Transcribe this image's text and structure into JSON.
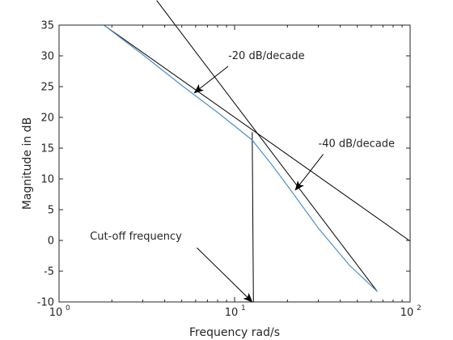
{
  "chart_data": {
    "type": "line",
    "xlabel": "Frequency rad/s",
    "ylabel": "Magnitude in dB",
    "xscale": "log",
    "xlim": [
      1,
      100
    ],
    "ylim": [
      -10,
      35
    ],
    "grid": false,
    "x_ticks": [
      {
        "value": 1,
        "base": "10",
        "exp": "0"
      },
      {
        "value": 10,
        "base": "10",
        "exp": "1"
      },
      {
        "value": 100,
        "base": "10",
        "exp": "2"
      }
    ],
    "y_ticks": [
      {
        "value": -10,
        "label": "-10"
      },
      {
        "value": -5,
        "label": "-5"
      },
      {
        "value": 0,
        "label": "0"
      },
      {
        "value": 5,
        "label": "5"
      },
      {
        "value": 10,
        "label": "10"
      },
      {
        "value": 15,
        "label": "15"
      },
      {
        "value": 20,
        "label": "20"
      },
      {
        "value": 25,
        "label": "25"
      },
      {
        "value": 30,
        "label": "30"
      },
      {
        "value": 35,
        "label": "35"
      }
    ],
    "series": [
      {
        "color": "#4a90c8",
        "points": [
          [
            1.8,
            35
          ],
          [
            3,
            30.2
          ],
          [
            5,
            25.2
          ],
          [
            8,
            20.8
          ],
          [
            10,
            18.6
          ],
          [
            12.6,
            16.3
          ],
          [
            16,
            12.6
          ],
          [
            20,
            8.9
          ],
          [
            30,
            2.0
          ],
          [
            45,
            -4.0
          ],
          [
            65,
            -8.3
          ]
        ]
      }
    ],
    "lines": [
      {
        "color": "#000000",
        "points": [
          [
            1.8,
            35
          ],
          [
            100,
            -0.1
          ]
        ]
      },
      {
        "color": "#000000",
        "points": [
          [
            3.6,
            39
          ],
          [
            65,
            -8.3
          ]
        ]
      },
      {
        "color": "#000000",
        "points": [
          [
            12.6,
            17.6
          ],
          [
            12.8,
            -10
          ]
        ]
      }
    ],
    "annotations": [
      {
        "text": "-20 dB/decade",
        "text_at": [
          9.2,
          29.5
        ],
        "arrow_from": [
          9.2,
          28.3
        ],
        "arrow_to": [
          5.9,
          24.0
        ]
      },
      {
        "text": "-40 dB/decade",
        "text_at": [
          30,
          15.2
        ],
        "arrow_from": [
          32,
          14.0
        ],
        "arrow_to": [
          22.2,
          8.2
        ]
      },
      {
        "text": "Cut-off frequency",
        "text_at": [
          1.5,
          0.1
        ],
        "arrow_from": [
          6.1,
          -1.2
        ],
        "arrow_to": [
          12.6,
          -10
        ]
      }
    ]
  }
}
